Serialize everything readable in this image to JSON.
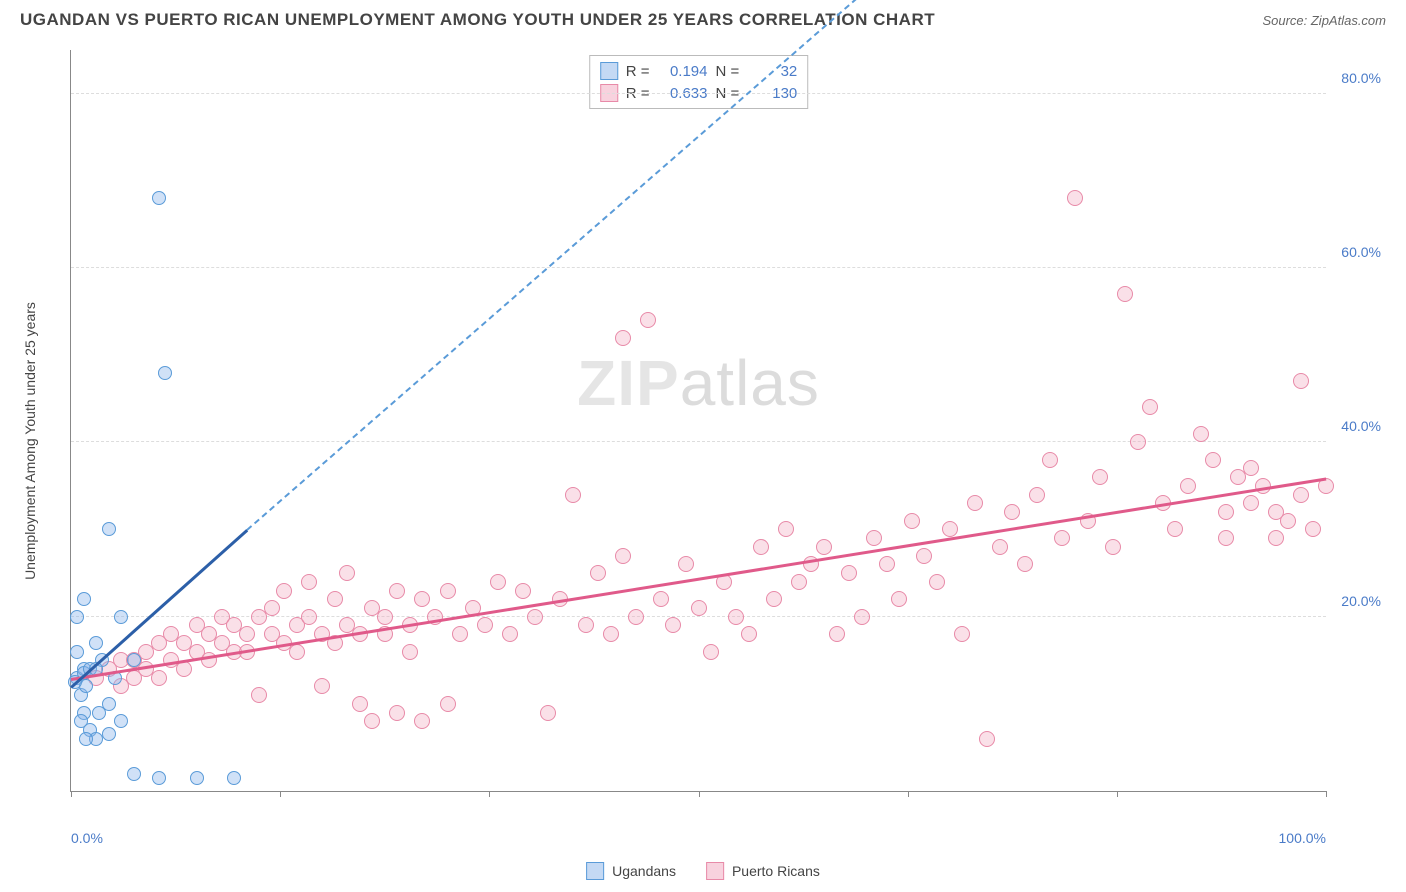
{
  "header": {
    "title": "UGANDAN VS PUERTO RICAN UNEMPLOYMENT AMONG YOUTH UNDER 25 YEARS CORRELATION CHART",
    "source_prefix": "Source: ",
    "source": "ZipAtlas.com"
  },
  "chart": {
    "type": "scatter",
    "y_label": "Unemployment Among Youth under 25 years",
    "x_range": [
      0,
      100
    ],
    "y_range": [
      0,
      85
    ],
    "x_ticks": [
      0,
      16.67,
      33.33,
      50,
      66.67,
      83.33,
      100
    ],
    "x_tick_labels_shown": {
      "0": "0.0%",
      "100": "100.0%"
    },
    "y_gridlines": [
      20,
      40,
      60,
      80
    ],
    "y_tick_labels": [
      "20.0%",
      "40.0%",
      "60.0%",
      "80.0%"
    ],
    "background_color": "#ffffff",
    "grid_color": "#dddddd",
    "axis_color": "#888888",
    "tick_label_color": "#4a7bc8",
    "watermark": "ZIPatlas",
    "series": {
      "ugandans": {
        "label": "Ugandans",
        "color_fill": "rgba(137,180,234,0.4)",
        "color_stroke": "#5a9bd8",
        "marker_size": 14,
        "r": "0.194",
        "n": "32",
        "trend": {
          "x1": 0,
          "y1": 12,
          "x2": 14,
          "y2": 30,
          "dash_to_x": 65,
          "dash_to_y": 94,
          "color": "#2c5fa8"
        },
        "points": [
          [
            0.5,
            13
          ],
          [
            0.8,
            11
          ],
          [
            1,
            14
          ],
          [
            1.2,
            12
          ],
          [
            0.5,
            16
          ],
          [
            1,
            13.5
          ],
          [
            1.5,
            14
          ],
          [
            0.3,
            12.5
          ],
          [
            1,
            22
          ],
          [
            2,
            17
          ],
          [
            0.5,
            20
          ],
          [
            3,
            30
          ],
          [
            2.5,
            15
          ],
          [
            1,
            9
          ],
          [
            1.5,
            7
          ],
          [
            2,
            6
          ],
          [
            3,
            10
          ],
          [
            3.5,
            13
          ],
          [
            2,
            14
          ],
          [
            0.8,
            8
          ],
          [
            1.2,
            6
          ],
          [
            2.2,
            9
          ],
          [
            3,
            6.5
          ],
          [
            4,
            8
          ],
          [
            7,
            68
          ],
          [
            7.5,
            48
          ],
          [
            5,
            15
          ],
          [
            4,
            20
          ],
          [
            5,
            2
          ],
          [
            7,
            1.5
          ],
          [
            10,
            1.5
          ],
          [
            13,
            1.5
          ]
        ]
      },
      "puerto_ricans": {
        "label": "Puerto Ricans",
        "color_fill": "rgba(242,166,190,0.35)",
        "color_stroke": "#e88aa8",
        "marker_size": 16,
        "r": "0.633",
        "n": "130",
        "trend": {
          "x1": 0,
          "y1": 13,
          "x2": 100,
          "y2": 36,
          "color": "#e05a8a"
        },
        "points": [
          [
            2,
            13
          ],
          [
            3,
            14
          ],
          [
            4,
            15
          ],
          [
            4,
            12
          ],
          [
            5,
            15
          ],
          [
            5,
            13
          ],
          [
            6,
            16
          ],
          [
            6,
            14
          ],
          [
            7,
            17
          ],
          [
            7,
            13
          ],
          [
            8,
            15
          ],
          [
            8,
            18
          ],
          [
            9,
            14
          ],
          [
            9,
            17
          ],
          [
            10,
            16
          ],
          [
            10,
            19
          ],
          [
            11,
            15
          ],
          [
            11,
            18
          ],
          [
            12,
            17
          ],
          [
            12,
            20
          ],
          [
            13,
            16
          ],
          [
            13,
            19
          ],
          [
            14,
            18
          ],
          [
            14,
            16
          ],
          [
            15,
            20
          ],
          [
            15,
            11
          ],
          [
            16,
            18
          ],
          [
            16,
            21
          ],
          [
            17,
            17
          ],
          [
            17,
            23
          ],
          [
            18,
            19
          ],
          [
            18,
            16
          ],
          [
            19,
            20
          ],
          [
            19,
            24
          ],
          [
            20,
            18
          ],
          [
            20,
            12
          ],
          [
            21,
            22
          ],
          [
            21,
            17
          ],
          [
            22,
            19
          ],
          [
            22,
            25
          ],
          [
            23,
            18
          ],
          [
            23,
            10
          ],
          [
            24,
            21
          ],
          [
            24,
            8
          ],
          [
            25,
            20
          ],
          [
            25,
            18
          ],
          [
            26,
            23
          ],
          [
            26,
            9
          ],
          [
            27,
            19
          ],
          [
            27,
            16
          ],
          [
            28,
            22
          ],
          [
            28,
            8
          ],
          [
            29,
            20
          ],
          [
            30,
            23
          ],
          [
            30,
            10
          ],
          [
            31,
            18
          ],
          [
            32,
            21
          ],
          [
            33,
            19
          ],
          [
            34,
            24
          ],
          [
            35,
            18
          ],
          [
            36,
            23
          ],
          [
            37,
            20
          ],
          [
            38,
            9
          ],
          [
            39,
            22
          ],
          [
            40,
            34
          ],
          [
            41,
            19
          ],
          [
            42,
            25
          ],
          [
            43,
            18
          ],
          [
            44,
            27
          ],
          [
            44,
            52
          ],
          [
            45,
            20
          ],
          [
            46,
            54
          ],
          [
            47,
            22
          ],
          [
            48,
            19
          ],
          [
            49,
            26
          ],
          [
            50,
            21
          ],
          [
            51,
            16
          ],
          [
            52,
            24
          ],
          [
            53,
            20
          ],
          [
            54,
            18
          ],
          [
            55,
            28
          ],
          [
            56,
            22
          ],
          [
            57,
            30
          ],
          [
            58,
            24
          ],
          [
            59,
            26
          ],
          [
            60,
            28
          ],
          [
            61,
            18
          ],
          [
            62,
            25
          ],
          [
            63,
            20
          ],
          [
            64,
            29
          ],
          [
            65,
            26
          ],
          [
            66,
            22
          ],
          [
            67,
            31
          ],
          [
            68,
            27
          ],
          [
            69,
            24
          ],
          [
            70,
            30
          ],
          [
            71,
            18
          ],
          [
            72,
            33
          ],
          [
            73,
            6
          ],
          [
            74,
            28
          ],
          [
            75,
            32
          ],
          [
            76,
            26
          ],
          [
            77,
            34
          ],
          [
            78,
            38
          ],
          [
            79,
            29
          ],
          [
            80,
            68
          ],
          [
            81,
            31
          ],
          [
            82,
            36
          ],
          [
            83,
            28
          ],
          [
            84,
            57
          ],
          [
            85,
            40
          ],
          [
            86,
            44
          ],
          [
            87,
            33
          ],
          [
            88,
            30
          ],
          [
            89,
            35
          ],
          [
            90,
            41
          ],
          [
            91,
            38
          ],
          [
            92,
            29
          ],
          [
            93,
            36
          ],
          [
            94,
            33
          ],
          [
            95,
            35
          ],
          [
            96,
            32
          ],
          [
            97,
            31
          ],
          [
            98,
            47
          ],
          [
            99,
            30
          ],
          [
            100,
            35
          ],
          [
            98,
            34
          ],
          [
            96,
            29
          ],
          [
            94,
            37
          ],
          [
            92,
            32
          ]
        ]
      }
    }
  },
  "stats_box": {
    "rows": [
      {
        "swatch": "blue",
        "r_label": "R =",
        "r_val": "0.194",
        "n_label": "N =",
        "n_val": "32"
      },
      {
        "swatch": "pink",
        "r_label": "R =",
        "r_val": "0.633",
        "n_label": "N =",
        "n_val": "130"
      }
    ]
  },
  "legend": {
    "items": [
      {
        "swatch": "blue",
        "label": "Ugandans"
      },
      {
        "swatch": "pink",
        "label": "Puerto Ricans"
      }
    ]
  }
}
